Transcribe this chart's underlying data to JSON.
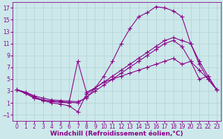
{
  "background_color": "#cce8ea",
  "line_color": "#880088",
  "marker": "+",
  "markersize": 4,
  "linewidth": 0.8,
  "grid_color": "#aacccc",
  "xlabel": "Windchill (Refroidissement éolien,°C)",
  "xlabel_fontsize": 6.5,
  "tick_fontsize": 5.5,
  "xlim": [
    -0.5,
    23.5
  ],
  "ylim": [
    -2,
    18
  ],
  "yticks": [
    -1,
    1,
    3,
    5,
    7,
    9,
    11,
    13,
    15,
    17
  ],
  "xticks": [
    0,
    1,
    2,
    3,
    4,
    5,
    6,
    7,
    8,
    9,
    10,
    11,
    12,
    13,
    14,
    15,
    16,
    17,
    18,
    19,
    20,
    21,
    22,
    23
  ],
  "lines": [
    {
      "x": [
        0,
        1,
        2,
        3,
        4,
        5,
        6,
        7,
        8,
        9,
        10,
        11,
        12,
        13,
        14,
        15,
        16,
        17,
        18,
        19,
        20,
        21,
        22,
        23
      ],
      "y": [
        3.2,
        2.8,
        2.2,
        1.8,
        1.5,
        1.4,
        1.3,
        1.2,
        1.8,
        3.5,
        5.5,
        8.0,
        11.0,
        13.5,
        15.5,
        16.2,
        17.2,
        17.0,
        16.5,
        15.5,
        11.0,
        7.5,
        5.0,
        3.2
      ]
    },
    {
      "x": [
        0,
        1,
        2,
        3,
        4,
        5,
        6,
        7,
        8,
        9,
        10,
        11,
        12,
        13,
        14,
        15,
        16,
        17,
        18,
        19,
        20,
        21,
        22,
        23
      ],
      "y": [
        3.2,
        2.6,
        1.8,
        1.5,
        1.2,
        1.1,
        1.0,
        8.0,
        2.8,
        3.5,
        4.5,
        5.5,
        6.5,
        7.5,
        8.5,
        9.5,
        10.5,
        11.5,
        12.0,
        11.5,
        11.0,
        8.0,
        5.5,
        3.2
      ]
    },
    {
      "x": [
        0,
        1,
        2,
        3,
        4,
        5,
        6,
        7,
        8,
        9,
        10,
        11,
        12,
        13,
        14,
        15,
        16,
        17,
        18,
        19,
        20,
        21,
        22,
        23
      ],
      "y": [
        3.2,
        2.8,
        2.0,
        1.5,
        1.3,
        1.2,
        1.1,
        1.0,
        2.0,
        3.0,
        4.0,
        5.0,
        6.0,
        7.0,
        8.0,
        9.0,
        10.0,
        11.0,
        11.5,
        10.5,
        8.0,
        6.5,
        5.0,
        3.2
      ]
    },
    {
      "x": [
        0,
        1,
        2,
        3,
        4,
        5,
        6,
        7,
        8,
        9,
        10,
        11,
        12,
        13,
        14,
        15,
        16,
        17,
        18,
        19,
        20,
        21,
        22,
        23
      ],
      "y": [
        3.2,
        2.6,
        1.8,
        1.4,
        1.0,
        0.8,
        0.5,
        -0.5,
        2.5,
        3.5,
        4.5,
        5.0,
        5.5,
        6.0,
        6.5,
        7.0,
        7.5,
        8.0,
        8.5,
        7.5,
        8.0,
        5.0,
        5.5,
        3.2
      ]
    }
  ]
}
